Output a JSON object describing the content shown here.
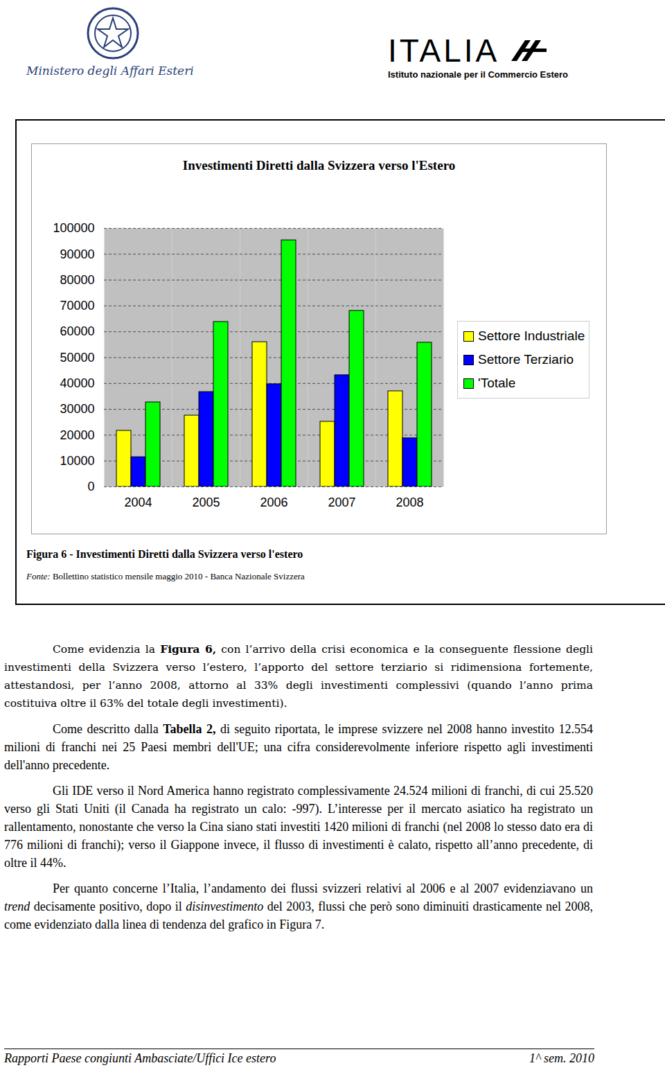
{
  "header": {
    "left_logo_text": "Ministero degli Affari Esteri",
    "right_logo_title": "ITALIA",
    "right_logo_subtitle": "Istituto nazionale per il Commercio Estero"
  },
  "chart_data": {
    "type": "bar",
    "title": "Investimenti Diretti dalla Svizzera verso l'Estero",
    "categories": [
      "2004",
      "2005",
      "2006",
      "2007",
      "2008"
    ],
    "series": [
      {
        "name": "Settore Industriale",
        "color": "#ffff00",
        "values": [
          21700,
          27600,
          56000,
          25200,
          37000
        ]
      },
      {
        "name": "Settore Terziario",
        "color": "#0000ff",
        "values": [
          11500,
          36700,
          39700,
          43200,
          18800
        ]
      },
      {
        "name": "'Totale",
        "color": "#00ff00",
        "values": [
          32700,
          63800,
          95400,
          68100,
          55800
        ]
      }
    ],
    "ylim": [
      0,
      100000
    ],
    "yticks": [
      0,
      10000,
      20000,
      30000,
      40000,
      50000,
      60000,
      70000,
      80000,
      90000,
      100000
    ],
    "grid": true,
    "legend": "right"
  },
  "figure": {
    "caption": "Figura 6 - Investimenti Diretti dalla Svizzera verso l'estero",
    "source_label": "Fonte:",
    "source": "Bollettino statistico mensile maggio 2010 - Banca Nazionale Svizzera"
  },
  "paragraphs": [
    [
      "Come evidenzia la ",
      {
        "text": "Figura 6,",
        "style": "bold"
      },
      " con l’arrivo della crisi economica e la conseguente flessione degli investimenti della Svizzera verso l’estero, l’apporto del settore terziario si ridimensiona fortemente, attestandosi, per l’anno 2008, attorno al 33% degli investimenti complessivi (quando l’anno prima costituiva oltre il 63% del totale degli investimenti)."
    ],
    [
      "Come descritto dalla ",
      {
        "text": "Tabella 2,",
        "style": "bold"
      },
      " di seguito riportata, le imprese svizzere nel 2008 hanno investito 12.554 milioni di franchi nei 25 Paesi membri dell'UE; una cifra considerevolmente inferiore rispetto agli investimenti dell'anno precedente."
    ],
    [
      "Gli IDE verso il Nord America hanno registrato complessivamente 24.524 milioni di franchi, di cui 25.520 verso gli Stati Uniti (il Canada ha registrato un calo: -997). L’interesse per il mercato asiatico ha registrato un rallentamento, nonostante che verso la Cina siano stati investiti 1420 milioni di franchi (nel 2008 lo stesso dato era di 776 milioni di franchi); verso il Giappone invece, il flusso di investimenti è calato, rispetto all’anno precedente, di oltre il 44%."
    ],
    [
      "Per quanto concerne l’Italia, l’andamento dei flussi svizzeri relativi al 2006 e al 2007 evidenziavano un ",
      {
        "text": "trend",
        "style": "italic"
      },
      " decisamente positivo, dopo il ",
      {
        "text": "disinvestimento",
        "style": "italic"
      },
      " del 2003, flussi che però sono diminuiti drasticamente nel 2008, come evidenziato dalla linea di tendenza del grafico in Figura 7."
    ]
  ],
  "footer": {
    "left": "Rapporti Paese congiunti Ambasciate/Uffici Ice estero",
    "right": "1^ sem. 2010"
  }
}
